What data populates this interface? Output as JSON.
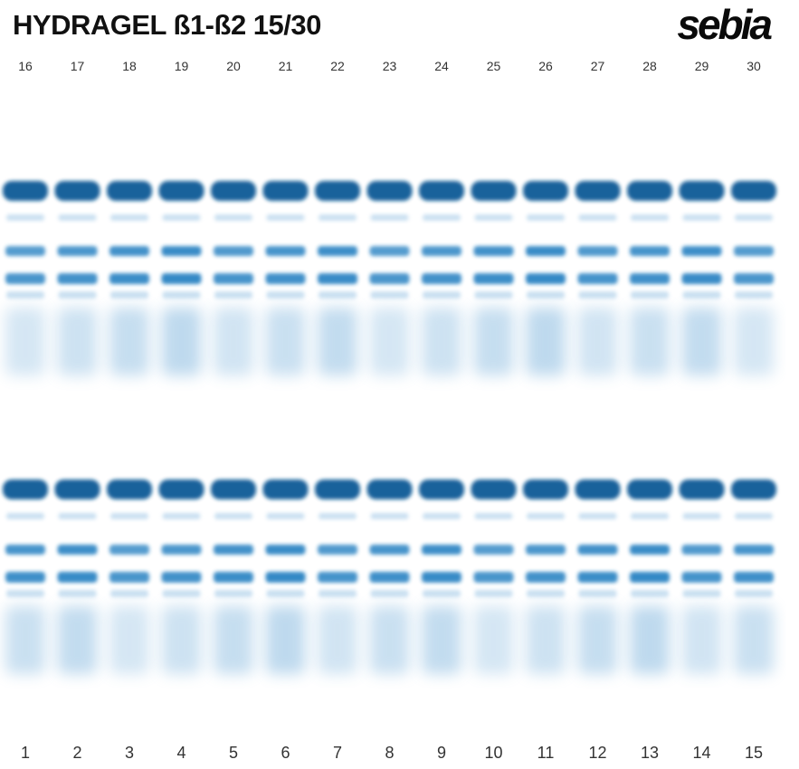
{
  "title": "HYDRAGEL ß1-ß2 15/30",
  "logo": "sebia",
  "top_lane_numbers": [
    "16",
    "17",
    "18",
    "19",
    "20",
    "21",
    "22",
    "23",
    "24",
    "25",
    "26",
    "27",
    "28",
    "29",
    "30"
  ],
  "bottom_lane_numbers": [
    "1",
    "2",
    "3",
    "4",
    "5",
    "6",
    "7",
    "8",
    "9",
    "10",
    "11",
    "12",
    "13",
    "14",
    "15"
  ],
  "colors": {
    "band_dark": "#0b5a96",
    "band_mid": "#1f7cbf",
    "band_light": "#6aa9d8",
    "background": "#ffffff"
  }
}
